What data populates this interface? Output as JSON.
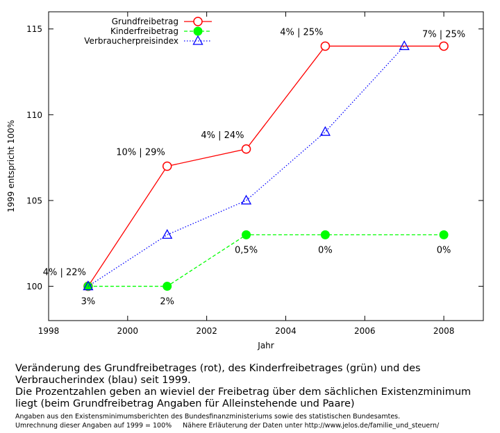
{
  "chart_data": {
    "type": "line",
    "title": "",
    "xlabel": "Jahr",
    "ylabel": "1999 entspricht 100%",
    "xlim": [
      1998,
      2009
    ],
    "ylim": [
      98,
      116
    ],
    "xticks": [
      1998,
      2000,
      2002,
      2004,
      2006,
      2008
    ],
    "yticks": [
      100,
      105,
      110,
      115
    ],
    "grid": false,
    "legend_position": "top-left",
    "series": [
      {
        "name": "Grundfreibetrag",
        "color": "#ff0000",
        "line_style": "solid",
        "marker": "open-circle",
        "x": [
          1999,
          2001,
          2003,
          2005,
          2008
        ],
        "y": [
          100,
          107,
          108,
          114,
          114
        ]
      },
      {
        "name": "Kinderfreibetrag",
        "color": "#00ff00",
        "line_style": "dashed",
        "marker": "filled-circle",
        "x": [
          1999,
          2001,
          2003,
          2005,
          2008
        ],
        "y": [
          100,
          100,
          103,
          103,
          103
        ]
      },
      {
        "name": "Verbraucherpreisindex",
        "color": "#0000ff",
        "line_style": "dotted",
        "marker": "open-triangle",
        "x": [
          1999,
          2001,
          2003,
          2005,
          2007
        ],
        "y": [
          100,
          103,
          105,
          109,
          114
        ]
      }
    ],
    "annotations": [
      {
        "text": "4% | 22%",
        "x": 1999,
        "y": 100,
        "placement": "above-left"
      },
      {
        "text": "3%",
        "x": 1999,
        "y": 100,
        "placement": "below"
      },
      {
        "text": "10% | 29%",
        "x": 2001,
        "y": 107,
        "placement": "above-left"
      },
      {
        "text": "2%",
        "x": 2001,
        "y": 100,
        "placement": "below"
      },
      {
        "text": "4% | 24%",
        "x": 2003,
        "y": 108,
        "placement": "above-left"
      },
      {
        "text": "0,5%",
        "x": 2003,
        "y": 103,
        "placement": "below"
      },
      {
        "text": "4% | 25%",
        "x": 2005,
        "y": 114,
        "placement": "above-left"
      },
      {
        "text": "0%",
        "x": 2005,
        "y": 103,
        "placement": "below"
      },
      {
        "text": "7% | 25%",
        "x": 2008,
        "y": 114,
        "placement": "above"
      },
      {
        "text": "0%",
        "x": 2008,
        "y": 103,
        "placement": "below"
      }
    ]
  },
  "caption": {
    "main_lines": [
      "Veränderung des Grundfreibetrages (rot), des Kinderfreibetrages (grün) und des",
      "Verbraucherindex (blau) seit 1999.",
      "Die Prozentzahlen geben an wieviel der Freibetrag über dem sächlichen Existenzminimum",
      "liegt (beim Grundfreibetrag Angaben für Alleinstehende und Paare)"
    ],
    "source_line": "Angaben aus den Existensminimumsberichten des Bundesfinanzministeriums sowie des statistischen Bundesamtes.",
    "conversion_note": "Umrechnung dieser Angaben auf 1999 = 100%",
    "details_note": "Nähere Erläuterung der Daten unter http://www.jelos.de/familie_und_steuern/"
  }
}
